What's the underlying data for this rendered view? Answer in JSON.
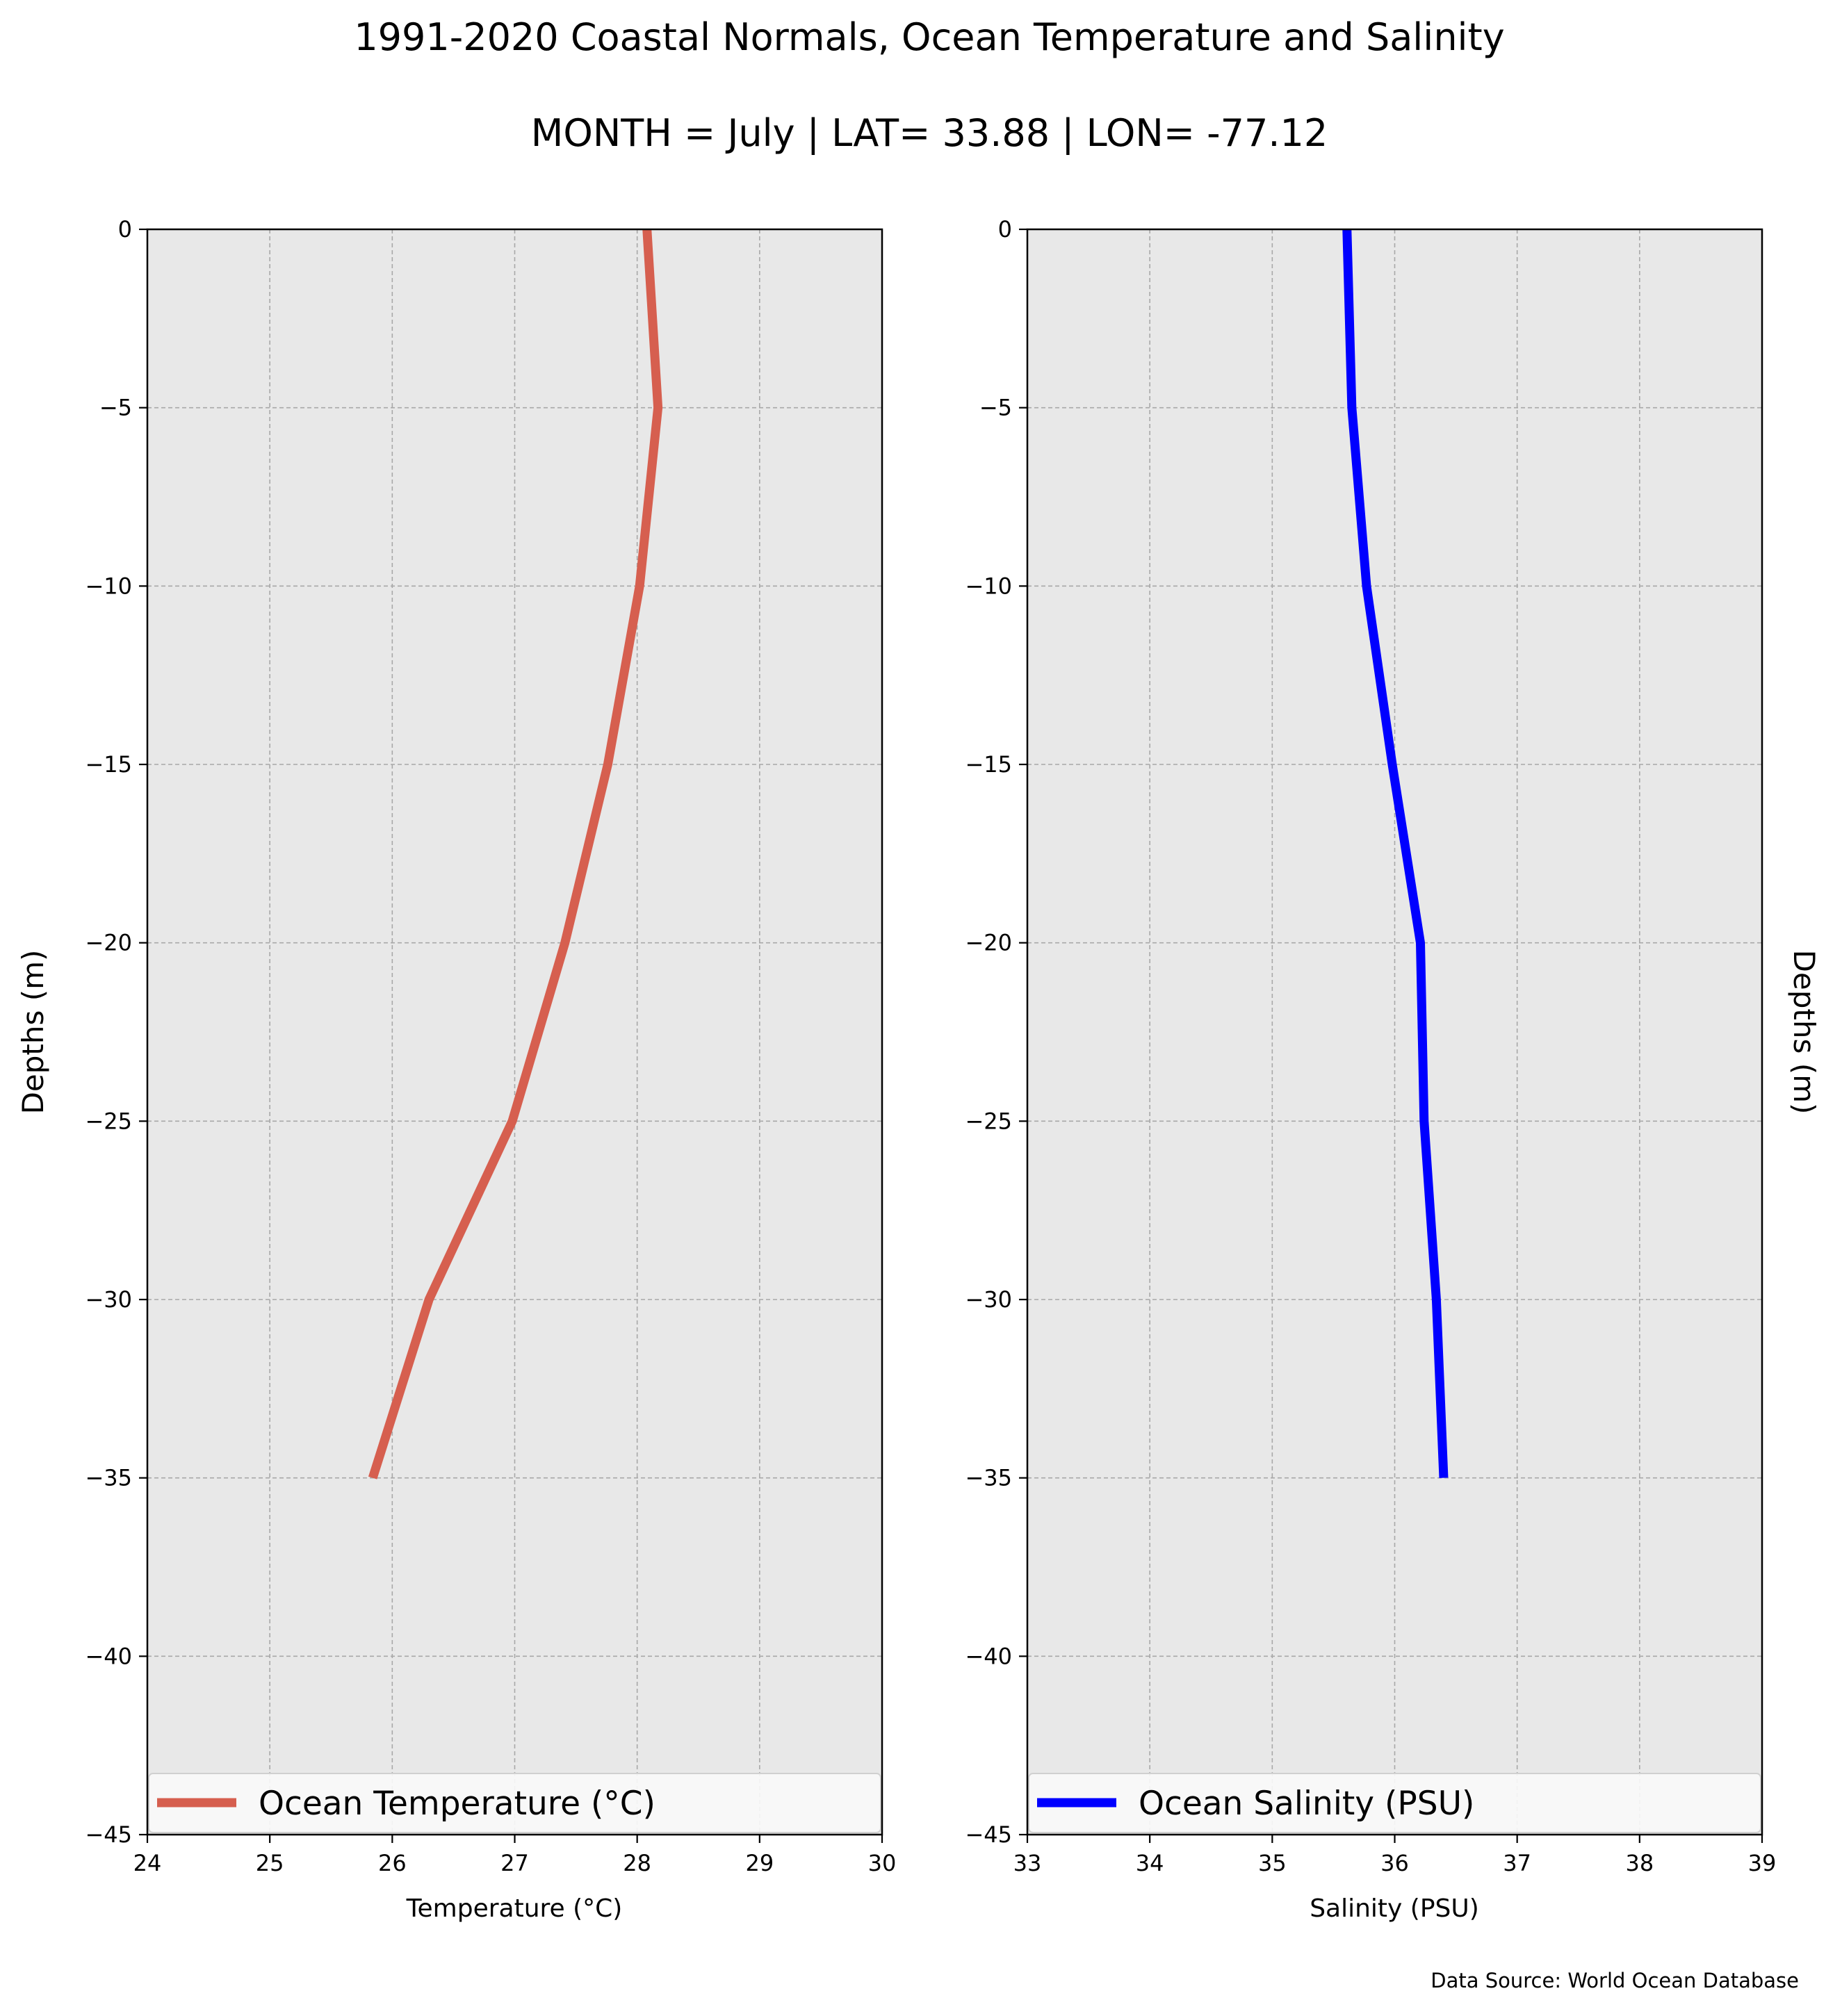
{
  "title": "1991-2020 Coastal Normals, Ocean Temperature and Salinity",
  "subtitle": "MONTH = July | LAT= 33.88 | LON= -77.12",
  "source": "Data Source: World Ocean Database",
  "chart_data": [
    {
      "type": "line",
      "xlabel": "Temperature ($^\\circ$C)",
      "xlabel_display": "Temperature (°C)",
      "ylabel": "Depths (m)",
      "xlim": [
        24,
        30
      ],
      "ylim": [
        -45,
        0
      ],
      "xticks": [
        "24",
        "25",
        "26",
        "27",
        "28",
        "29",
        "30"
      ],
      "yticks": [
        "0",
        "−5",
        "−10",
        "−15",
        "−20",
        "−25",
        "−30",
        "−35",
        "−40",
        "−45"
      ],
      "grid": true,
      "legend_position": "bottom",
      "series": [
        {
          "name": "Ocean Temperature (°C)",
          "color": "#d65f4f",
          "x": [
            28.08,
            28.17,
            28.02,
            27.76,
            27.41,
            26.98,
            26.3,
            25.84
          ],
          "y": [
            0,
            -5,
            -10,
            -15,
            -20,
            -25,
            -30,
            -35
          ]
        }
      ]
    },
    {
      "type": "line",
      "xlabel": "Salinity (PSU)",
      "ylabel": "Depths (m)",
      "xlim": [
        33,
        39
      ],
      "ylim": [
        -45,
        0
      ],
      "xticks": [
        "33",
        "34",
        "35",
        "36",
        "37",
        "38",
        "39"
      ],
      "yticks": [
        "0",
        "−5",
        "−10",
        "−15",
        "−20",
        "−25",
        "−30",
        "−35",
        "−40",
        "−45"
      ],
      "grid": true,
      "legend_position": "bottom",
      "series": [
        {
          "name": "Ocean Salinity (PSU)",
          "color": "#0000ff",
          "x": [
            35.61,
            35.65,
            35.77,
            35.98,
            36.21,
            36.24,
            36.34,
            36.4
          ],
          "y": [
            0,
            -5,
            -10,
            -15,
            -20,
            -25,
            -30,
            -35
          ]
        }
      ]
    }
  ]
}
